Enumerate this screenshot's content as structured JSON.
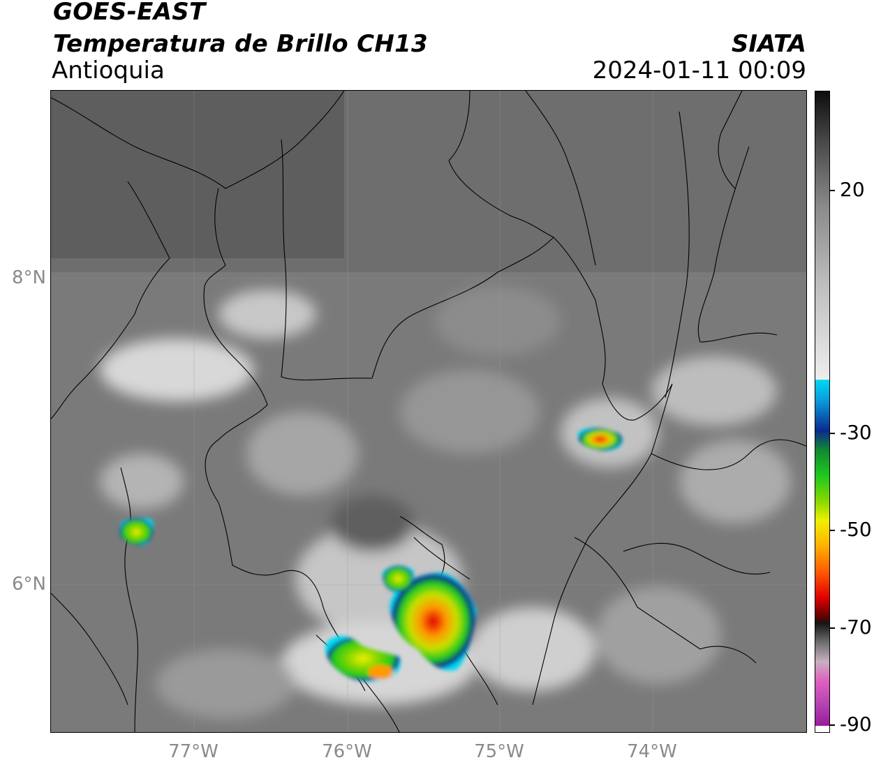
{
  "header": {
    "satellite": "GOES-EAST",
    "product": "Temperatura de Brillo CH13",
    "region": "Antioquia",
    "organization": "SIATA",
    "timestamp": "2024-01-11 00:09"
  },
  "map": {
    "lat_labels": [
      "8°N",
      "6°N"
    ],
    "lon_labels": [
      "77°W",
      "76°W",
      "75°W",
      "74°W"
    ],
    "background": "grayscale infrared brightness temperature field with cloud patches",
    "boundary_color": "#000000"
  },
  "colorbar": {
    "tick_labels": [
      "20",
      "-30",
      "-50",
      "-70",
      "-90"
    ],
    "tick_values": [
      20,
      -30,
      -50,
      -70,
      -90
    ],
    "colors": {
      "warm_top": "#0d0d0d",
      "neutral": "#eeeeee",
      "cyan": "#00d8f0",
      "blue": "#0a2a8c",
      "green": "#1ec81e",
      "yellow": "#f0f000",
      "orange": "#ff9a00",
      "red": "#e00000",
      "dark": "#151515",
      "pink": "#e060c0",
      "purple": "#9a1a9a"
    }
  },
  "storm_cells": [
    {
      "location": "west coast near 77.4W 6.4N"
    },
    {
      "location": "north-east near 74.3W 7.0N"
    },
    {
      "location": "central near 75.4W 5.8N"
    },
    {
      "location": "south-west near 75.9W 5.5N"
    }
  ]
}
